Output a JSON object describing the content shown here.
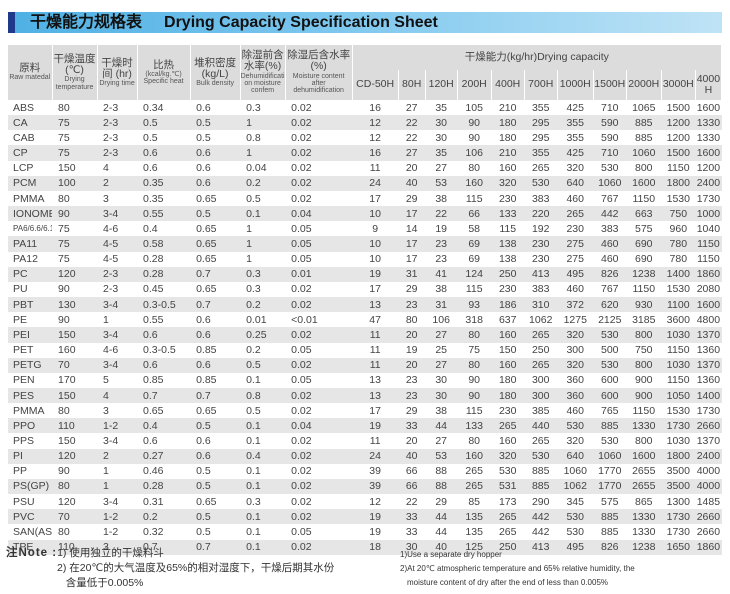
{
  "title": {
    "cn": "干燥能力规格表",
    "en": "Drying Capacity Specification Sheet",
    "accent_color": "#4fb0e4",
    "mark_color": "#1f3a8a"
  },
  "headers": {
    "raw": {
      "cn": "原料",
      "en": "Raw matedal"
    },
    "temp": {
      "cn": "干燥温度 (℃)",
      "en": "Drying temperature"
    },
    "time": {
      "cn": "干燥时间 (hr)",
      "en": "Drying time"
    },
    "heat": {
      "cn": "比热",
      "unit": "(kcal/kg.℃)",
      "en": "Specific heat"
    },
    "bulk": {
      "cn": "堆积密度(kg/L)",
      "en": "Bulk density"
    },
    "before": {
      "cn": "除湿前含水率(%)",
      "en": "Dehumidification moisture confem"
    },
    "after": {
      "cn": "除湿后含水率(%)",
      "en": "Moisture content after dehumidification"
    },
    "capacity": "干燥能力(kg/hr)Drying capacity",
    "models": [
      "CD-50H",
      "80H",
      "120H",
      "200H",
      "400H",
      "700H",
      "1000H",
      "1500H",
      "2000H",
      "3000H",
      "4000H"
    ]
  },
  "rows": [
    [
      "ABS",
      "80",
      "2-3",
      "0.34",
      "0.6",
      "0.3",
      "0.02",
      "16",
      "27",
      "35",
      "105",
      "210",
      "355",
      "425",
      "710",
      "1065",
      "1500",
      "1600"
    ],
    [
      "CA",
      "75",
      "2-3",
      "0.5",
      "0.5",
      "1",
      "0.02",
      "12",
      "22",
      "30",
      "90",
      "180",
      "295",
      "355",
      "590",
      "885",
      "1200",
      "1330"
    ],
    [
      "CAB",
      "75",
      "2-3",
      "0.5",
      "0.5",
      "0.8",
      "0.02",
      "12",
      "22",
      "30",
      "90",
      "180",
      "295",
      "355",
      "590",
      "885",
      "1200",
      "1330"
    ],
    [
      "CP",
      "75",
      "2-3",
      "0.6",
      "0.6",
      "1",
      "0.02",
      "16",
      "27",
      "35",
      "106",
      "210",
      "355",
      "425",
      "710",
      "1060",
      "1500",
      "1600"
    ],
    [
      "LCP",
      "150",
      "4",
      "0.6",
      "0.6",
      "0.04",
      "0.02",
      "11",
      "20",
      "27",
      "80",
      "160",
      "265",
      "320",
      "530",
      "800",
      "1150",
      "1200"
    ],
    [
      "PCM",
      "100",
      "2",
      "0.35",
      "0.6",
      "0.2",
      "0.02",
      "24",
      "40",
      "53",
      "160",
      "320",
      "530",
      "640",
      "1060",
      "1600",
      "1800",
      "2400"
    ],
    [
      "PMMA",
      "80",
      "3",
      "0.35",
      "0.65",
      "0.5",
      "0.02",
      "17",
      "29",
      "38",
      "115",
      "230",
      "383",
      "460",
      "767",
      "1150",
      "1530",
      "1730"
    ],
    [
      "IONOMER",
      "90",
      "3-4",
      "0.55",
      "0.5",
      "0.1",
      "0.04",
      "10",
      "17",
      "22",
      "66",
      "133",
      "220",
      "265",
      "442",
      "663",
      "750",
      "1000"
    ],
    [
      "PA6/6.6/6.10",
      "75",
      "4-6",
      "0.4",
      "0.65",
      "1",
      "0.05",
      "9",
      "14",
      "19",
      "58",
      "115",
      "192",
      "230",
      "383",
      "575",
      "960",
      "1040"
    ],
    [
      "PA11",
      "75",
      "4-5",
      "0.58",
      "0.65",
      "1",
      "0.05",
      "10",
      "17",
      "23",
      "69",
      "138",
      "230",
      "275",
      "460",
      "690",
      "780",
      "1150"
    ],
    [
      "PA12",
      "75",
      "4-5",
      "0.28",
      "0.65",
      "1",
      "0.05",
      "10",
      "17",
      "23",
      "69",
      "138",
      "230",
      "275",
      "460",
      "690",
      "780",
      "1150"
    ],
    [
      "PC",
      "120",
      "2-3",
      "0.28",
      "0.7",
      "0.3",
      "0.01",
      "19",
      "31",
      "41",
      "124",
      "250",
      "413",
      "495",
      "826",
      "1238",
      "1400",
      "1860"
    ],
    [
      "PU",
      "90",
      "2-3",
      "0.45",
      "0.65",
      "0.3",
      "0.02",
      "17",
      "29",
      "38",
      "115",
      "230",
      "383",
      "460",
      "767",
      "1150",
      "1530",
      "2080"
    ],
    [
      "PBT",
      "130",
      "3-4",
      "0.3-0.5",
      "0.7",
      "0.2",
      "0.02",
      "13",
      "23",
      "31",
      "93",
      "186",
      "310",
      "372",
      "620",
      "930",
      "1100",
      "1600"
    ],
    [
      "PE",
      "90",
      "1",
      "0.55",
      "0.6",
      "0.01",
      "<0.01",
      "47",
      "80",
      "106",
      "318",
      "637",
      "1062",
      "1275",
      "2125",
      "3185",
      "3600",
      "4800"
    ],
    [
      "PEI",
      "150",
      "3-4",
      "0.6",
      "0.6",
      "0.25",
      "0.02",
      "11",
      "20",
      "27",
      "80",
      "160",
      "265",
      "320",
      "530",
      "800",
      "1030",
      "1370"
    ],
    [
      "PET",
      "160",
      "4-6",
      "0.3-0.5",
      "0.85",
      "0.2",
      "0.05",
      "11",
      "19",
      "25",
      "75",
      "150",
      "250",
      "300",
      "500",
      "750",
      "1150",
      "1360"
    ],
    [
      "PETG",
      "70",
      "3-4",
      "0.6",
      "0.6",
      "0.5",
      "0.02",
      "11",
      "20",
      "27",
      "80",
      "160",
      "265",
      "320",
      "530",
      "800",
      "1030",
      "1370"
    ],
    [
      "PEN",
      "170",
      "5",
      "0.85",
      "0.85",
      "0.1",
      "0.05",
      "13",
      "23",
      "30",
      "90",
      "180",
      "300",
      "360",
      "600",
      "900",
      "1150",
      "1360"
    ],
    [
      "PES",
      "150",
      "4",
      "0.7",
      "0.7",
      "0.8",
      "0.02",
      "13",
      "23",
      "30",
      "90",
      "180",
      "300",
      "360",
      "600",
      "900",
      "1050",
      "1400"
    ],
    [
      "PMMA",
      "80",
      "3",
      "0.65",
      "0.65",
      "0.5",
      "0.02",
      "17",
      "29",
      "38",
      "115",
      "230",
      "385",
      "460",
      "765",
      "1150",
      "1530",
      "1730"
    ],
    [
      "PPO",
      "110",
      "1-2",
      "0.4",
      "0.5",
      "0.1",
      "0.04",
      "19",
      "33",
      "44",
      "133",
      "265",
      "440",
      "530",
      "885",
      "1330",
      "1730",
      "2660"
    ],
    [
      "PPS",
      "150",
      "3-4",
      "0.6",
      "0.6",
      "0.1",
      "0.02",
      "11",
      "20",
      "27",
      "80",
      "160",
      "265",
      "320",
      "530",
      "800",
      "1030",
      "1370"
    ],
    [
      "PI",
      "120",
      "2",
      "0.27",
      "0.6",
      "0.4",
      "0.02",
      "24",
      "40",
      "53",
      "160",
      "320",
      "530",
      "640",
      "1060",
      "1600",
      "1800",
      "2400"
    ],
    [
      "PP",
      "90",
      "1",
      "0.46",
      "0.5",
      "0.1",
      "0.02",
      "39",
      "66",
      "88",
      "265",
      "530",
      "885",
      "1060",
      "1770",
      "2655",
      "3500",
      "4000"
    ],
    [
      "PS(GP)",
      "80",
      "1",
      "0.28",
      "0.5",
      "0.1",
      "0.02",
      "39",
      "66",
      "88",
      "265",
      "531",
      "885",
      "1062",
      "1770",
      "2655",
      "3500",
      "4000"
    ],
    [
      "PSU",
      "120",
      "3-4",
      "0.31",
      "0.65",
      "0.3",
      "0.02",
      "12",
      "22",
      "29",
      "85",
      "173",
      "290",
      "345",
      "575",
      "865",
      "1300",
      "1485"
    ],
    [
      "PVC",
      "70",
      "1-2",
      "0.2",
      "0.5",
      "0.1",
      "0.02",
      "19",
      "33",
      "44",
      "135",
      "265",
      "442",
      "530",
      "885",
      "1330",
      "1730",
      "2660"
    ],
    [
      "SAN(AS)",
      "80",
      "1-2",
      "0.32",
      "0.5",
      "0.1",
      "0.05",
      "19",
      "33",
      "44",
      "135",
      "265",
      "442",
      "530",
      "885",
      "1330",
      "1730",
      "2660"
    ],
    [
      "TPE",
      "110",
      "3",
      "0.7",
      "0.7",
      "0.1",
      "0.02",
      "18",
      "30",
      "40",
      "125",
      "250",
      "413",
      "495",
      "826",
      "1238",
      "1650",
      "1860"
    ]
  ],
  "notes": {
    "label": "注Note :",
    "cn1": "1) 使用独立的干燥料斗",
    "cn2a": "2) 在20℃的大气温度及65%的相对湿度下，干燥后期其水份",
    "cn2b": "含量低于0.005%",
    "en1": "1)Use a separate dry hopper",
    "en2a": "2)At 20℃ atmospheric temperature and 65% relative humidity, the",
    "en2b": "moisture content of dry after the end of less than 0.005%"
  }
}
